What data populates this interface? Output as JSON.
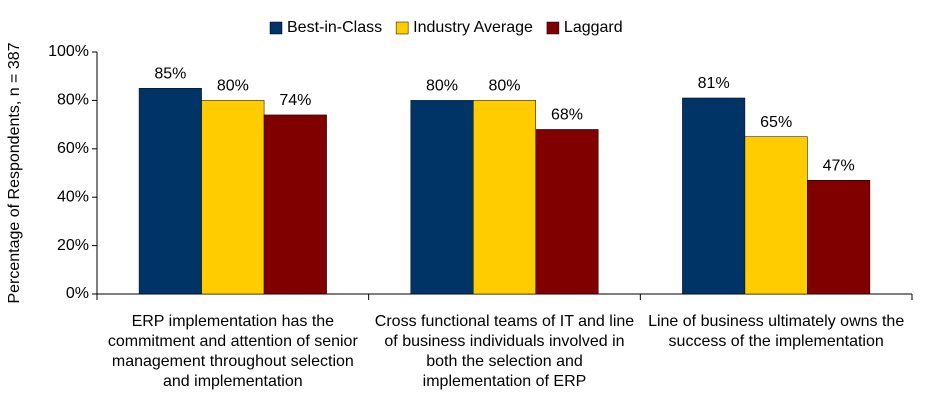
{
  "chart_data": {
    "type": "bar",
    "ylabel": "Percentage of Respondents, n = 387",
    "categories": [
      "ERP implementation has the commitment and attention of senior management throughout selection and implementation",
      "Cross functional teams of IT and line of business individuals involved in both the selection and implementation of ERP",
      "Line of business ultimately owns the success of the implementation"
    ],
    "series": [
      {
        "name": "Best-in-Class",
        "color": "#003366",
        "values": [
          85,
          80,
          81
        ],
        "value_labels": [
          "85%",
          "80%",
          "81%"
        ]
      },
      {
        "name": "Industry Average",
        "color": "#ffcc00",
        "values": [
          80,
          80,
          65
        ],
        "value_labels": [
          "80%",
          "80%",
          "65%"
        ]
      },
      {
        "name": "Laggard",
        "color": "#800000",
        "values": [
          74,
          68,
          47
        ],
        "value_labels": [
          "74%",
          "68%",
          "47%"
        ]
      }
    ],
    "ylim": [
      0,
      100
    ],
    "yticks": [
      {
        "value": 0,
        "label": "0%"
      },
      {
        "value": 20,
        "label": "20%"
      },
      {
        "value": 40,
        "label": "40%"
      },
      {
        "value": 60,
        "label": "60%"
      },
      {
        "value": 80,
        "label": "80%"
      },
      {
        "value": 100,
        "label": "100%"
      }
    ],
    "legend": "top"
  }
}
